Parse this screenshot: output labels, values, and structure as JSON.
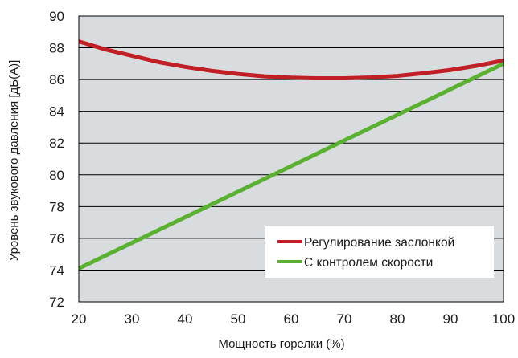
{
  "colors": {
    "plot_background": "#d9dcde",
    "gridline": "#000000",
    "red_series": "#c01f26",
    "green_series": "#5ab031",
    "legend_background": "#ffffff"
  },
  "chart_data": {
    "type": "line",
    "title": "",
    "xlabel": "Мощность горелки (%)",
    "ylabel": "Уровень звукового давления [дБ(А)]",
    "xlim": [
      20,
      100
    ],
    "ylim": [
      72,
      90
    ],
    "xticks": [
      "20",
      "30",
      "40",
      "50",
      "60",
      "70",
      "80",
      "90",
      "100"
    ],
    "yticks": [
      "72",
      "74",
      "76",
      "78",
      "80",
      "82",
      "84",
      "86",
      "88",
      "90"
    ],
    "grid": "horizontal",
    "legend_position": "bottom-right",
    "series": [
      {
        "name": "Регулирование заслонкой",
        "color": "#c01f26",
        "x": [
          20,
          25,
          30,
          35,
          40,
          45,
          50,
          55,
          60,
          65,
          70,
          75,
          80,
          85,
          90,
          95,
          100
        ],
        "y": [
          88.4,
          87.9,
          87.5,
          87.1,
          86.8,
          86.55,
          86.35,
          86.2,
          86.12,
          86.08,
          86.08,
          86.13,
          86.23,
          86.4,
          86.6,
          86.87,
          87.2
        ]
      },
      {
        "name": "С контролем скорости",
        "color": "#5ab031",
        "x": [
          20,
          100
        ],
        "y": [
          74.1,
          87.0
        ]
      }
    ]
  }
}
